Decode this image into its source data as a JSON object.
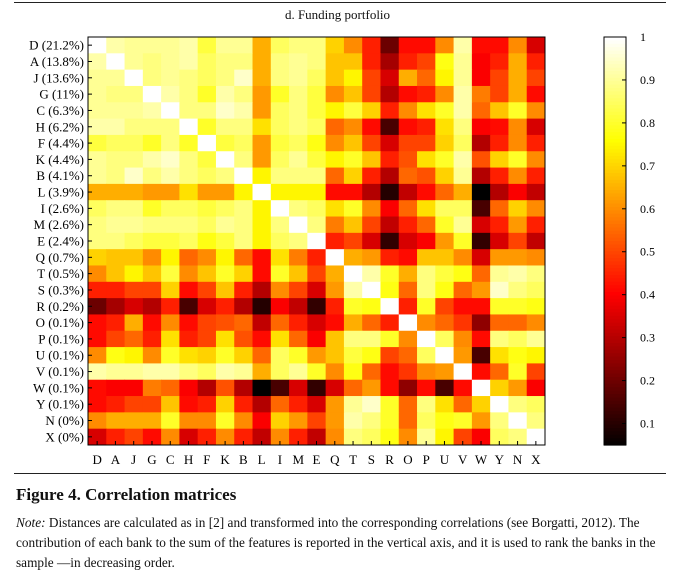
{
  "chart_data": {
    "type": "heatmap",
    "title": "d. Funding portfolio",
    "row_labels": [
      "D (21.2%)",
      "A (13.8%)",
      "J (13.6%)",
      "G (11%)",
      "C (6.3%)",
      "H (6.2%)",
      "F (4.4%)",
      "K (4.4%)",
      "B (4.1%)",
      "L (3.9%)",
      "I (2.6%)",
      "M (2.6%)",
      "E (2.4%)",
      "Q (0.7%)",
      "T (0.5%)",
      "S (0.3%)",
      "R (0.2%)",
      "O (0.1%)",
      "P (0.1%)",
      "U (0.1%)",
      "V (0.1%)",
      "W (0.1%)",
      "Y (0.1%)",
      "N (0%)",
      "X (0%)"
    ],
    "col_labels": [
      "D",
      "A",
      "J",
      "G",
      "C",
      "H",
      "F",
      "K",
      "B",
      "L",
      "I",
      "M",
      "E",
      "Q",
      "T",
      "S",
      "R",
      "O",
      "P",
      "U",
      "V",
      "W",
      "Y",
      "N",
      "X"
    ],
    "values": [
      [
        1,
        0.92,
        0.9,
        0.9,
        0.9,
        0.92,
        0.82,
        0.9,
        0.9,
        0.65,
        0.85,
        0.88,
        0.88,
        0.7,
        0.6,
        0.45,
        0.2,
        0.42,
        0.42,
        0.6,
        0.92,
        0.42,
        0.42,
        0.6,
        0.35
      ],
      [
        0.92,
        1,
        0.9,
        0.88,
        0.9,
        0.92,
        0.85,
        0.88,
        0.88,
        0.65,
        0.88,
        0.9,
        0.88,
        0.68,
        0.68,
        0.45,
        0.28,
        0.45,
        0.5,
        0.78,
        0.9,
        0.4,
        0.45,
        0.65,
        0.45
      ],
      [
        0.9,
        0.9,
        1,
        0.88,
        0.9,
        0.88,
        0.85,
        0.88,
        0.95,
        0.65,
        0.88,
        0.9,
        0.85,
        0.68,
        0.75,
        0.5,
        0.35,
        0.65,
        0.55,
        0.75,
        0.9,
        0.4,
        0.5,
        0.65,
        0.5
      ],
      [
        0.9,
        0.88,
        0.88,
        1,
        0.92,
        0.88,
        0.8,
        0.92,
        0.88,
        0.62,
        0.8,
        0.88,
        0.82,
        0.6,
        0.68,
        0.5,
        0.3,
        0.42,
        0.45,
        0.6,
        0.92,
        0.58,
        0.5,
        0.65,
        0.42
      ],
      [
        0.9,
        0.9,
        0.9,
        0.92,
        1,
        0.88,
        0.88,
        0.95,
        0.92,
        0.62,
        0.85,
        0.88,
        0.82,
        0.75,
        0.82,
        0.7,
        0.45,
        0.6,
        0.72,
        0.8,
        0.92,
        0.55,
        0.68,
        0.8,
        0.6
      ],
      [
        0.92,
        0.92,
        0.88,
        0.88,
        0.88,
        1,
        0.8,
        0.88,
        0.88,
        0.72,
        0.85,
        0.88,
        0.85,
        0.55,
        0.6,
        0.42,
        0.15,
        0.42,
        0.45,
        0.72,
        0.88,
        0.4,
        0.42,
        0.6,
        0.35
      ],
      [
        0.82,
        0.85,
        0.85,
        0.8,
        0.88,
        0.8,
        1,
        0.82,
        0.85,
        0.62,
        0.82,
        0.85,
        0.78,
        0.6,
        0.68,
        0.5,
        0.35,
        0.5,
        0.5,
        0.7,
        0.85,
        0.3,
        0.45,
        0.6,
        0.45
      ],
      [
        0.9,
        0.88,
        0.88,
        0.92,
        0.95,
        0.88,
        0.82,
        1,
        0.88,
        0.62,
        0.85,
        0.9,
        0.82,
        0.75,
        0.8,
        0.68,
        0.45,
        0.52,
        0.72,
        0.8,
        0.92,
        0.52,
        0.7,
        0.8,
        0.6
      ],
      [
        0.9,
        0.88,
        0.95,
        0.88,
        0.92,
        0.88,
        0.85,
        0.88,
        1,
        0.75,
        0.88,
        0.88,
        0.88,
        0.55,
        0.7,
        0.45,
        0.3,
        0.55,
        0.52,
        0.7,
        0.9,
        0.3,
        0.45,
        0.6,
        0.45
      ],
      [
        0.65,
        0.65,
        0.65,
        0.62,
        0.62,
        0.72,
        0.62,
        0.62,
        0.75,
        1,
        0.75,
        0.75,
        0.75,
        0.42,
        0.42,
        0.3,
        0.1,
        0.32,
        0.42,
        0.55,
        0.65,
        0.05,
        0.3,
        0.4,
        0.32
      ],
      [
        0.85,
        0.88,
        0.88,
        0.8,
        0.85,
        0.85,
        0.82,
        0.85,
        0.88,
        0.75,
        1,
        0.88,
        0.85,
        0.72,
        0.8,
        0.6,
        0.4,
        0.55,
        0.72,
        0.85,
        0.85,
        0.15,
        0.55,
        0.7,
        0.6
      ],
      [
        0.88,
        0.9,
        0.9,
        0.88,
        0.88,
        0.88,
        0.85,
        0.9,
        0.88,
        0.75,
        0.88,
        1,
        0.88,
        0.58,
        0.68,
        0.5,
        0.32,
        0.45,
        0.55,
        0.8,
        0.9,
        0.35,
        0.45,
        0.62,
        0.45
      ],
      [
        0.88,
        0.88,
        0.85,
        0.82,
        0.82,
        0.85,
        0.78,
        0.82,
        0.88,
        0.75,
        0.85,
        0.88,
        1,
        0.45,
        0.5,
        0.35,
        0.12,
        0.35,
        0.4,
        0.62,
        0.8,
        0.12,
        0.35,
        0.5,
        0.32
      ],
      [
        0.7,
        0.68,
        0.68,
        0.6,
        0.75,
        0.55,
        0.6,
        0.75,
        0.55,
        0.42,
        0.72,
        0.58,
        0.45,
        1,
        0.65,
        0.62,
        0.45,
        0.42,
        0.68,
        0.68,
        0.6,
        0.35,
        0.62,
        0.62,
        0.6
      ],
      [
        0.6,
        0.68,
        0.75,
        0.68,
        0.82,
        0.6,
        0.68,
        0.8,
        0.7,
        0.42,
        0.8,
        0.68,
        0.5,
        0.65,
        1,
        0.92,
        0.8,
        0.65,
        0.88,
        0.82,
        0.78,
        0.55,
        0.9,
        0.92,
        0.88
      ],
      [
        0.45,
        0.45,
        0.5,
        0.5,
        0.7,
        0.42,
        0.5,
        0.68,
        0.45,
        0.3,
        0.6,
        0.5,
        0.35,
        0.62,
        0.92,
        1,
        0.78,
        0.55,
        0.88,
        0.78,
        0.55,
        0.62,
        0.95,
        0.88,
        0.85
      ],
      [
        0.2,
        0.28,
        0.35,
        0.3,
        0.45,
        0.15,
        0.35,
        0.45,
        0.3,
        0.1,
        0.4,
        0.32,
        0.12,
        0.45,
        0.8,
        0.78,
        1,
        0.45,
        0.8,
        0.5,
        0.42,
        0.42,
        0.8,
        0.8,
        0.78
      ],
      [
        0.42,
        0.45,
        0.65,
        0.42,
        0.6,
        0.42,
        0.5,
        0.52,
        0.55,
        0.32,
        0.55,
        0.45,
        0.35,
        0.42,
        0.65,
        0.55,
        0.45,
        1,
        0.6,
        0.55,
        0.48,
        0.25,
        0.55,
        0.55,
        0.6
      ],
      [
        0.42,
        0.5,
        0.55,
        0.45,
        0.72,
        0.45,
        0.5,
        0.72,
        0.52,
        0.42,
        0.72,
        0.55,
        0.4,
        0.68,
        0.88,
        0.88,
        0.8,
        0.6,
        1,
        0.85,
        0.6,
        0.42,
        0.88,
        0.85,
        0.9
      ],
      [
        0.6,
        0.78,
        0.75,
        0.6,
        0.8,
        0.72,
        0.7,
        0.8,
        0.7,
        0.55,
        0.85,
        0.8,
        0.62,
        0.68,
        0.82,
        0.78,
        0.5,
        0.55,
        0.85,
        1,
        0.62,
        0.15,
        0.72,
        0.78,
        0.75
      ],
      [
        0.92,
        0.9,
        0.9,
        0.92,
        0.92,
        0.88,
        0.85,
        0.92,
        0.9,
        0.65,
        0.85,
        0.9,
        0.8,
        0.6,
        0.78,
        0.55,
        0.42,
        0.48,
        0.6,
        0.62,
        1,
        0.42,
        0.55,
        0.8,
        0.5
      ],
      [
        0.42,
        0.4,
        0.4,
        0.58,
        0.55,
        0.4,
        0.3,
        0.52,
        0.3,
        0.05,
        0.15,
        0.35,
        0.12,
        0.35,
        0.55,
        0.62,
        0.42,
        0.25,
        0.42,
        0.15,
        0.42,
        1,
        0.7,
        0.62,
        0.4
      ],
      [
        0.42,
        0.45,
        0.5,
        0.5,
        0.68,
        0.42,
        0.45,
        0.7,
        0.45,
        0.3,
        0.55,
        0.45,
        0.35,
        0.62,
        0.9,
        0.95,
        0.8,
        0.55,
        0.88,
        0.72,
        0.55,
        0.7,
        1,
        0.88,
        0.85
      ],
      [
        0.6,
        0.65,
        0.65,
        0.65,
        0.8,
        0.6,
        0.6,
        0.8,
        0.6,
        0.4,
        0.7,
        0.62,
        0.5,
        0.62,
        0.92,
        0.88,
        0.8,
        0.55,
        0.85,
        0.78,
        0.8,
        0.62,
        0.88,
        1,
        0.88
      ],
      [
        0.35,
        0.45,
        0.5,
        0.42,
        0.6,
        0.35,
        0.45,
        0.6,
        0.45,
        0.32,
        0.6,
        0.45,
        0.32,
        0.6,
        0.88,
        0.85,
        0.78,
        0.6,
        0.9,
        0.75,
        0.5,
        0.4,
        0.85,
        0.88,
        1
      ]
    ],
    "colormap": "hot",
    "colorbar": {
      "range": [
        0.05,
        1
      ],
      "ticks": [
        "1",
        "0.9",
        "0.8",
        "0.7",
        "0.6",
        "0.5",
        "0.4",
        "0.3",
        "0.2",
        "0.1"
      ]
    }
  },
  "figure": {
    "caption": "Figure 4. Correlation matrices",
    "note_label": "Note:",
    "note_text": " Distances are calculated as in [2] and transformed into the corresponding correlations (see Borgatti, 2012). The contribution of each bank to the sum of the features is reported in the vertical axis, and it is used to rank the banks in the sample —in decreasing order."
  }
}
